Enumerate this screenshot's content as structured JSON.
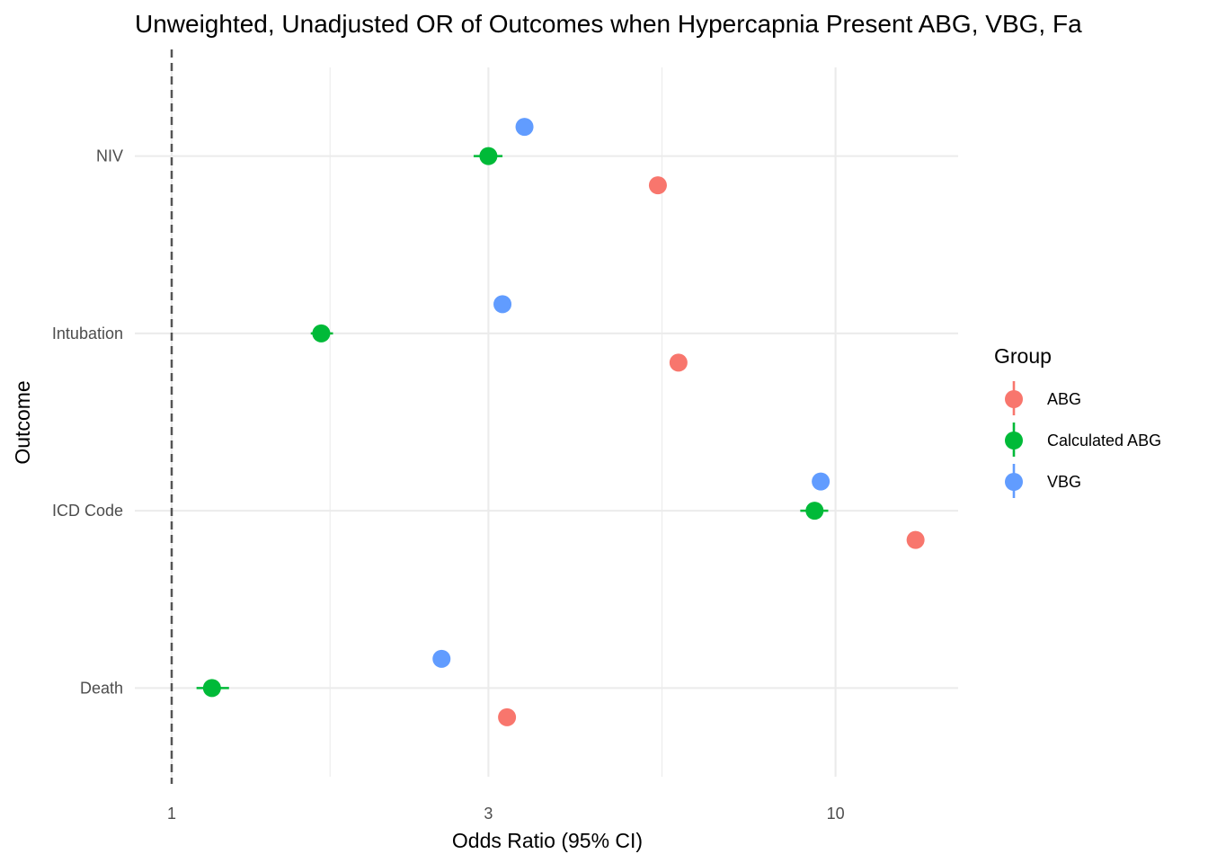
{
  "chart_data": {
    "type": "scatter",
    "title": "Unweighted, Unadjusted OR of Outcomes when Hypercapnia Present ABG, VBG, Fa",
    "xlabel": "Odds Ratio (95% CI)",
    "ylabel": "Outcome",
    "x_scale": "log",
    "xlim": [
      0.88,
      15.3
    ],
    "x_ticks": [
      1,
      3,
      10
    ],
    "x_tick_labels": [
      "1",
      "3",
      "10"
    ],
    "reference_line": {
      "x": 1,
      "style": "dashed"
    },
    "categories": [
      "Death",
      "ICD Code",
      "Intubation",
      "NIV"
    ],
    "grid": true,
    "legend": {
      "title": "Group",
      "position": "right",
      "entries": [
        "ABG",
        "Calculated ABG",
        "VBG"
      ]
    },
    "series": [
      {
        "name": "ABG",
        "color": "#F8766D",
        "points": [
          {
            "category": "Death",
            "or": 3.2,
            "lower": 3.17,
            "upper": 3.23
          },
          {
            "category": "ICD Code",
            "or": 13.2,
            "lower": 13.0,
            "upper": 13.4
          },
          {
            "category": "Intubation",
            "or": 5.8,
            "lower": 5.74,
            "upper": 5.86
          },
          {
            "category": "NIV",
            "or": 5.4,
            "lower": 5.36,
            "upper": 5.44
          }
        ]
      },
      {
        "name": "Calculated ABG",
        "color": "#00BA38",
        "points": [
          {
            "category": "Death",
            "or": 1.15,
            "lower": 1.09,
            "upper": 1.22
          },
          {
            "category": "ICD Code",
            "or": 9.3,
            "lower": 8.85,
            "upper": 9.75
          },
          {
            "category": "Intubation",
            "or": 1.68,
            "lower": 1.62,
            "upper": 1.75
          },
          {
            "category": "NIV",
            "or": 3.0,
            "lower": 2.85,
            "upper": 3.15
          }
        ]
      },
      {
        "name": "VBG",
        "color": "#619CFF",
        "points": [
          {
            "category": "Death",
            "or": 2.55,
            "lower": 2.53,
            "upper": 2.57
          },
          {
            "category": "ICD Code",
            "or": 9.5,
            "lower": 9.42,
            "upper": 9.58
          },
          {
            "category": "Intubation",
            "or": 3.15,
            "lower": 3.12,
            "upper": 3.18
          },
          {
            "category": "NIV",
            "or": 3.4,
            "lower": 3.37,
            "upper": 3.43
          }
        ]
      }
    ]
  }
}
